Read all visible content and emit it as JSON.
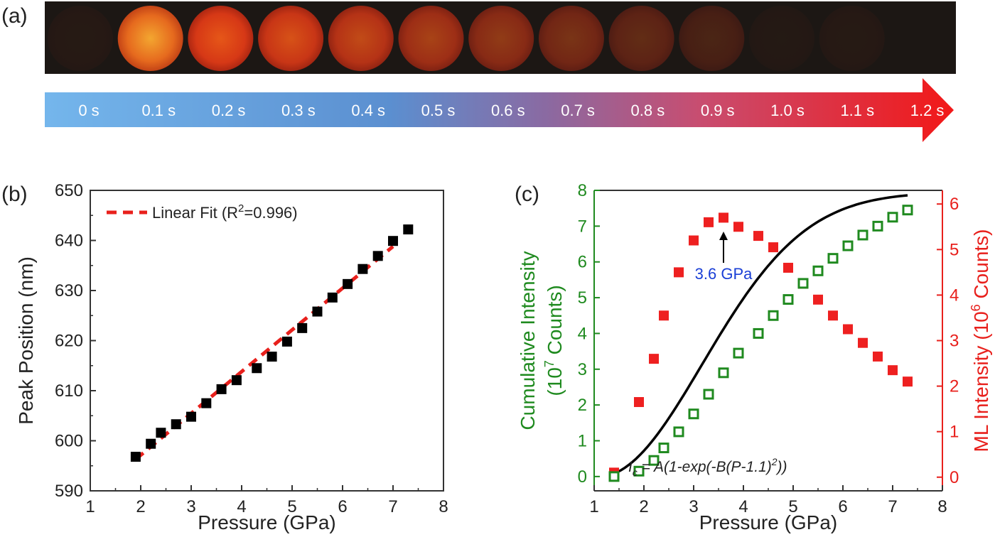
{
  "panel_a": {
    "label": "(a)",
    "frames": [
      {
        "time": "0 s",
        "intensity": 0.0
      },
      {
        "time": "0.1 s",
        "intensity": 1.0
      },
      {
        "time": "0.2 s",
        "intensity": 0.95
      },
      {
        "time": "0.3 s",
        "intensity": 0.88
      },
      {
        "time": "0.4 s",
        "intensity": 0.78
      },
      {
        "time": "0.5 s",
        "intensity": 0.66
      },
      {
        "time": "0.6 s",
        "intensity": 0.55
      },
      {
        "time": "0.7 s",
        "intensity": 0.44
      },
      {
        "time": "0.8 s",
        "intensity": 0.33
      },
      {
        "time": "0.9 s",
        "intensity": 0.22
      },
      {
        "time": "1.0 s",
        "intensity": 0.04
      },
      {
        "time": "1.1 s",
        "intensity": 0.0
      }
    ],
    "arrow_labels": [
      "0 s",
      "0.1 s",
      "0.2 s",
      "0.3 s",
      "0.4 s",
      "0.5 s",
      "0.6 s",
      "0.7 s",
      "0.8 s",
      "0.9 s",
      "1.0 s",
      "1.1 s",
      "1.2 s"
    ],
    "colors": {
      "frame_bg": "#1c1714",
      "arrow_start": "#74b6ec",
      "arrow_end": "#f21818",
      "glow": "#e8391a"
    }
  },
  "chart_data": [
    {
      "panel_label": "(b)",
      "type": "scatter",
      "xlabel": "Pressure (GPa)",
      "ylabel": "Peak Position (nm)",
      "xlim": [
        1,
        8
      ],
      "ylim": [
        590,
        650
      ],
      "xticks": [
        "1",
        "2",
        "3",
        "4",
        "5",
        "6",
        "7",
        "8"
      ],
      "yticks": [
        "590",
        "600",
        "610",
        "620",
        "630",
        "640",
        "650"
      ],
      "legend": {
        "text": "Linear Fit (R",
        "sup": "2",
        "after": "=0.996)",
        "placement": "top-left"
      },
      "series": [
        {
          "marker": "filled-square",
          "color": "#000000",
          "x": [
            1.9,
            2.2,
            2.4,
            2.7,
            3.0,
            3.3,
            3.6,
            3.9,
            4.3,
            4.6,
            4.9,
            5.2,
            5.5,
            5.8,
            6.1,
            6.4,
            6.7,
            7.0,
            7.3
          ],
          "y": [
            596.8,
            599.4,
            601.6,
            603.3,
            604.8,
            607.5,
            610.3,
            612.1,
            614.5,
            616.8,
            619.8,
            622.5,
            625.8,
            628.6,
            631.3,
            634.3,
            636.9,
            639.9,
            642.2
          ]
        }
      ],
      "fit": {
        "type": "linear",
        "color": "#e8201c",
        "x": [
          1.9,
          7.0
        ],
        "y": [
          596.3,
          638.8
        ]
      }
    },
    {
      "panel_label": "(c)",
      "type": "scatter",
      "xlabel": "Pressure (GPa)",
      "ylabel_left_parts": [
        "Cumulative Intensity",
        "(10",
        "7",
        " Counts)"
      ],
      "ylabel_right_parts": [
        "ML Intensity (10",
        "6",
        " Counts)"
      ],
      "xlim": [
        1,
        8
      ],
      "ylim_left": [
        -0.4,
        8
      ],
      "ylim_right": [
        -0.3,
        6.3
      ],
      "xticks": [
        "1",
        "2",
        "3",
        "4",
        "5",
        "6",
        "7",
        "8"
      ],
      "yticks_left": [
        "0",
        "1",
        "2",
        "3",
        "4",
        "5",
        "6",
        "7",
        "8"
      ],
      "yticks_right": [
        "0",
        "1",
        "2",
        "3",
        "4",
        "5",
        "6"
      ],
      "colors": {
        "left_axis": "#1f8a1f",
        "right_axis": "#e8201c",
        "fit": "#000000",
        "annotation": "#1a3fd6"
      },
      "series": [
        {
          "axis": "left",
          "marker": "open-square",
          "color": "#1f8a1f",
          "x": [
            1.4,
            1.9,
            2.2,
            2.4,
            2.7,
            3.0,
            3.3,
            3.6,
            3.9,
            4.3,
            4.6,
            4.9,
            5.2,
            5.5,
            5.8,
            6.1,
            6.4,
            6.7,
            7.0,
            7.3
          ],
          "y": [
            0.0,
            0.15,
            0.45,
            0.8,
            1.25,
            1.75,
            2.3,
            2.9,
            3.45,
            4.0,
            4.5,
            4.95,
            5.4,
            5.75,
            6.1,
            6.45,
            6.75,
            7.0,
            7.25,
            7.45
          ]
        },
        {
          "axis": "right",
          "marker": "filled-square",
          "color": "#ee2020",
          "x": [
            1.4,
            1.9,
            2.2,
            2.4,
            2.7,
            3.0,
            3.3,
            3.6,
            3.9,
            4.3,
            4.6,
            4.9,
            5.2,
            5.5,
            5.8,
            6.1,
            6.4,
            6.7,
            7.0,
            7.3
          ],
          "y": [
            0.1,
            1.65,
            2.6,
            3.55,
            4.5,
            5.2,
            5.6,
            5.7,
            5.5,
            5.3,
            5.05,
            4.6,
            4.25,
            3.9,
            3.55,
            3.25,
            2.95,
            2.65,
            2.35,
            2.1
          ]
        }
      ],
      "fit": {
        "axis": "left",
        "color": "#000000",
        "A": 7.95,
        "B": 0.117,
        "P0": 1.1,
        "xrange": [
          1.4,
          7.3
        ]
      },
      "fit_label": {
        "I": "I",
        "sub": "c",
        "eq": " = A(1-exp(-B(P-1.1)",
        "sup": "2",
        "end": "))"
      },
      "annotation": {
        "text": "3.6 GPa",
        "x": 3.6
      }
    }
  ]
}
